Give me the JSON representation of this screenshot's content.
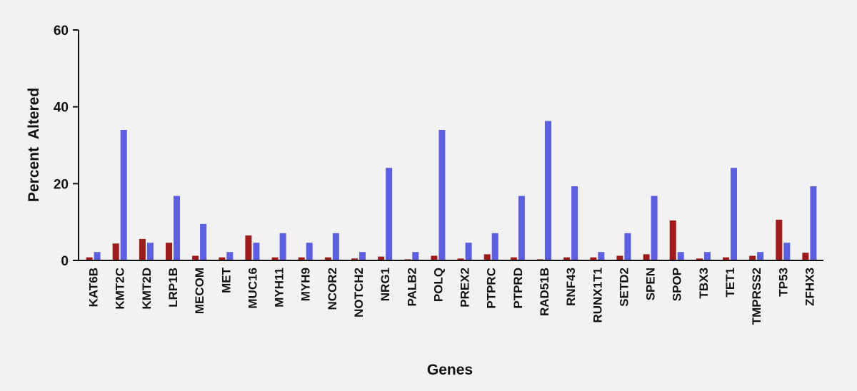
{
  "chart_data": {
    "type": "bar",
    "title": "",
    "xlabel": "Genes",
    "ylabel": "Percent  Altered",
    "ylim": [
      0,
      60
    ],
    "yticks": [
      0,
      20,
      40,
      60
    ],
    "grid": false,
    "categories": [
      "KAT6B",
      "KMT2C",
      "KMT2D",
      "LRP1B",
      "MECOM",
      "MET",
      "MUC16",
      "MYH11",
      "MYH9",
      "NCOR2",
      "NOTCH2",
      "NRG1",
      "PALB2",
      "POLQ",
      "PREX2",
      "PTPRC",
      "PTPRD",
      "RAD51B",
      "RNF43",
      "RUNX1T1",
      "SETD2",
      "SPEN",
      "SPOP",
      "TBX3",
      "TET1",
      "TMPRSS2",
      "TP53",
      "ZFHX3"
    ],
    "series": [
      {
        "color": "#a01c1c",
        "values": [
          0.8,
          4.4,
          5.6,
          4.6,
          1.2,
          0.8,
          6.5,
          0.8,
          0.8,
          0.8,
          0.5,
          1.0,
          0.3,
          1.2,
          0.5,
          1.6,
          0.8,
          0.3,
          0.8,
          0.8,
          1.2,
          1.6,
          10.4,
          0.5,
          0.8,
          1.2,
          10.6,
          2.0
        ]
      },
      {
        "color": "#5b5fe0",
        "values": [
          2.2,
          34,
          4.6,
          16.8,
          9.5,
          2.2,
          4.6,
          7.1,
          4.6,
          7.1,
          2.2,
          24.1,
          2.2,
          34,
          4.6,
          7.1,
          16.8,
          36.3,
          19.3,
          2.2,
          7.1,
          16.8,
          2.2,
          2.2,
          24.1,
          2.2,
          4.6,
          19.3
        ]
      }
    ]
  }
}
